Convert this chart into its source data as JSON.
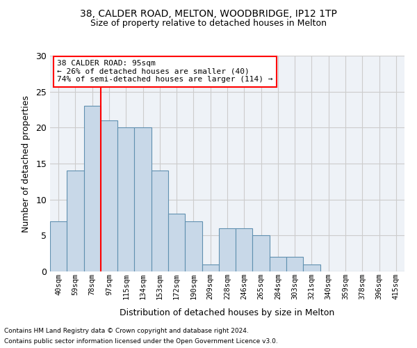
{
  "title1": "38, CALDER ROAD, MELTON, WOODBRIDGE, IP12 1TP",
  "title2": "Size of property relative to detached houses in Melton",
  "xlabel": "Distribution of detached houses by size in Melton",
  "ylabel": "Number of detached properties",
  "categories": [
    "40sqm",
    "59sqm",
    "78sqm",
    "97sqm",
    "115sqm",
    "134sqm",
    "153sqm",
    "172sqm",
    "190sqm",
    "209sqm",
    "228sqm",
    "246sqm",
    "265sqm",
    "284sqm",
    "303sqm",
    "321sqm",
    "340sqm",
    "359sqm",
    "378sqm",
    "396sqm",
    "415sqm"
  ],
  "values": [
    7,
    14,
    23,
    21,
    20,
    20,
    14,
    8,
    7,
    1,
    6,
    6,
    5,
    2,
    2,
    1,
    0,
    0,
    0,
    0,
    0
  ],
  "bar_color": "#c8d8e8",
  "bar_edge_color": "#6090b0",
  "grid_color": "#cccccc",
  "background_color": "#eef2f7",
  "red_line_x": 2.5,
  "annotation_line1": "38 CALDER ROAD: 95sqm",
  "annotation_line2": "← 26% of detached houses are smaller (40)",
  "annotation_line3": "74% of semi-detached houses are larger (114) →",
  "ylim": [
    0,
    30
  ],
  "yticks": [
    0,
    5,
    10,
    15,
    20,
    25,
    30
  ],
  "footer1": "Contains HM Land Registry data © Crown copyright and database right 2024.",
  "footer2": "Contains public sector information licensed under the Open Government Licence v3.0."
}
